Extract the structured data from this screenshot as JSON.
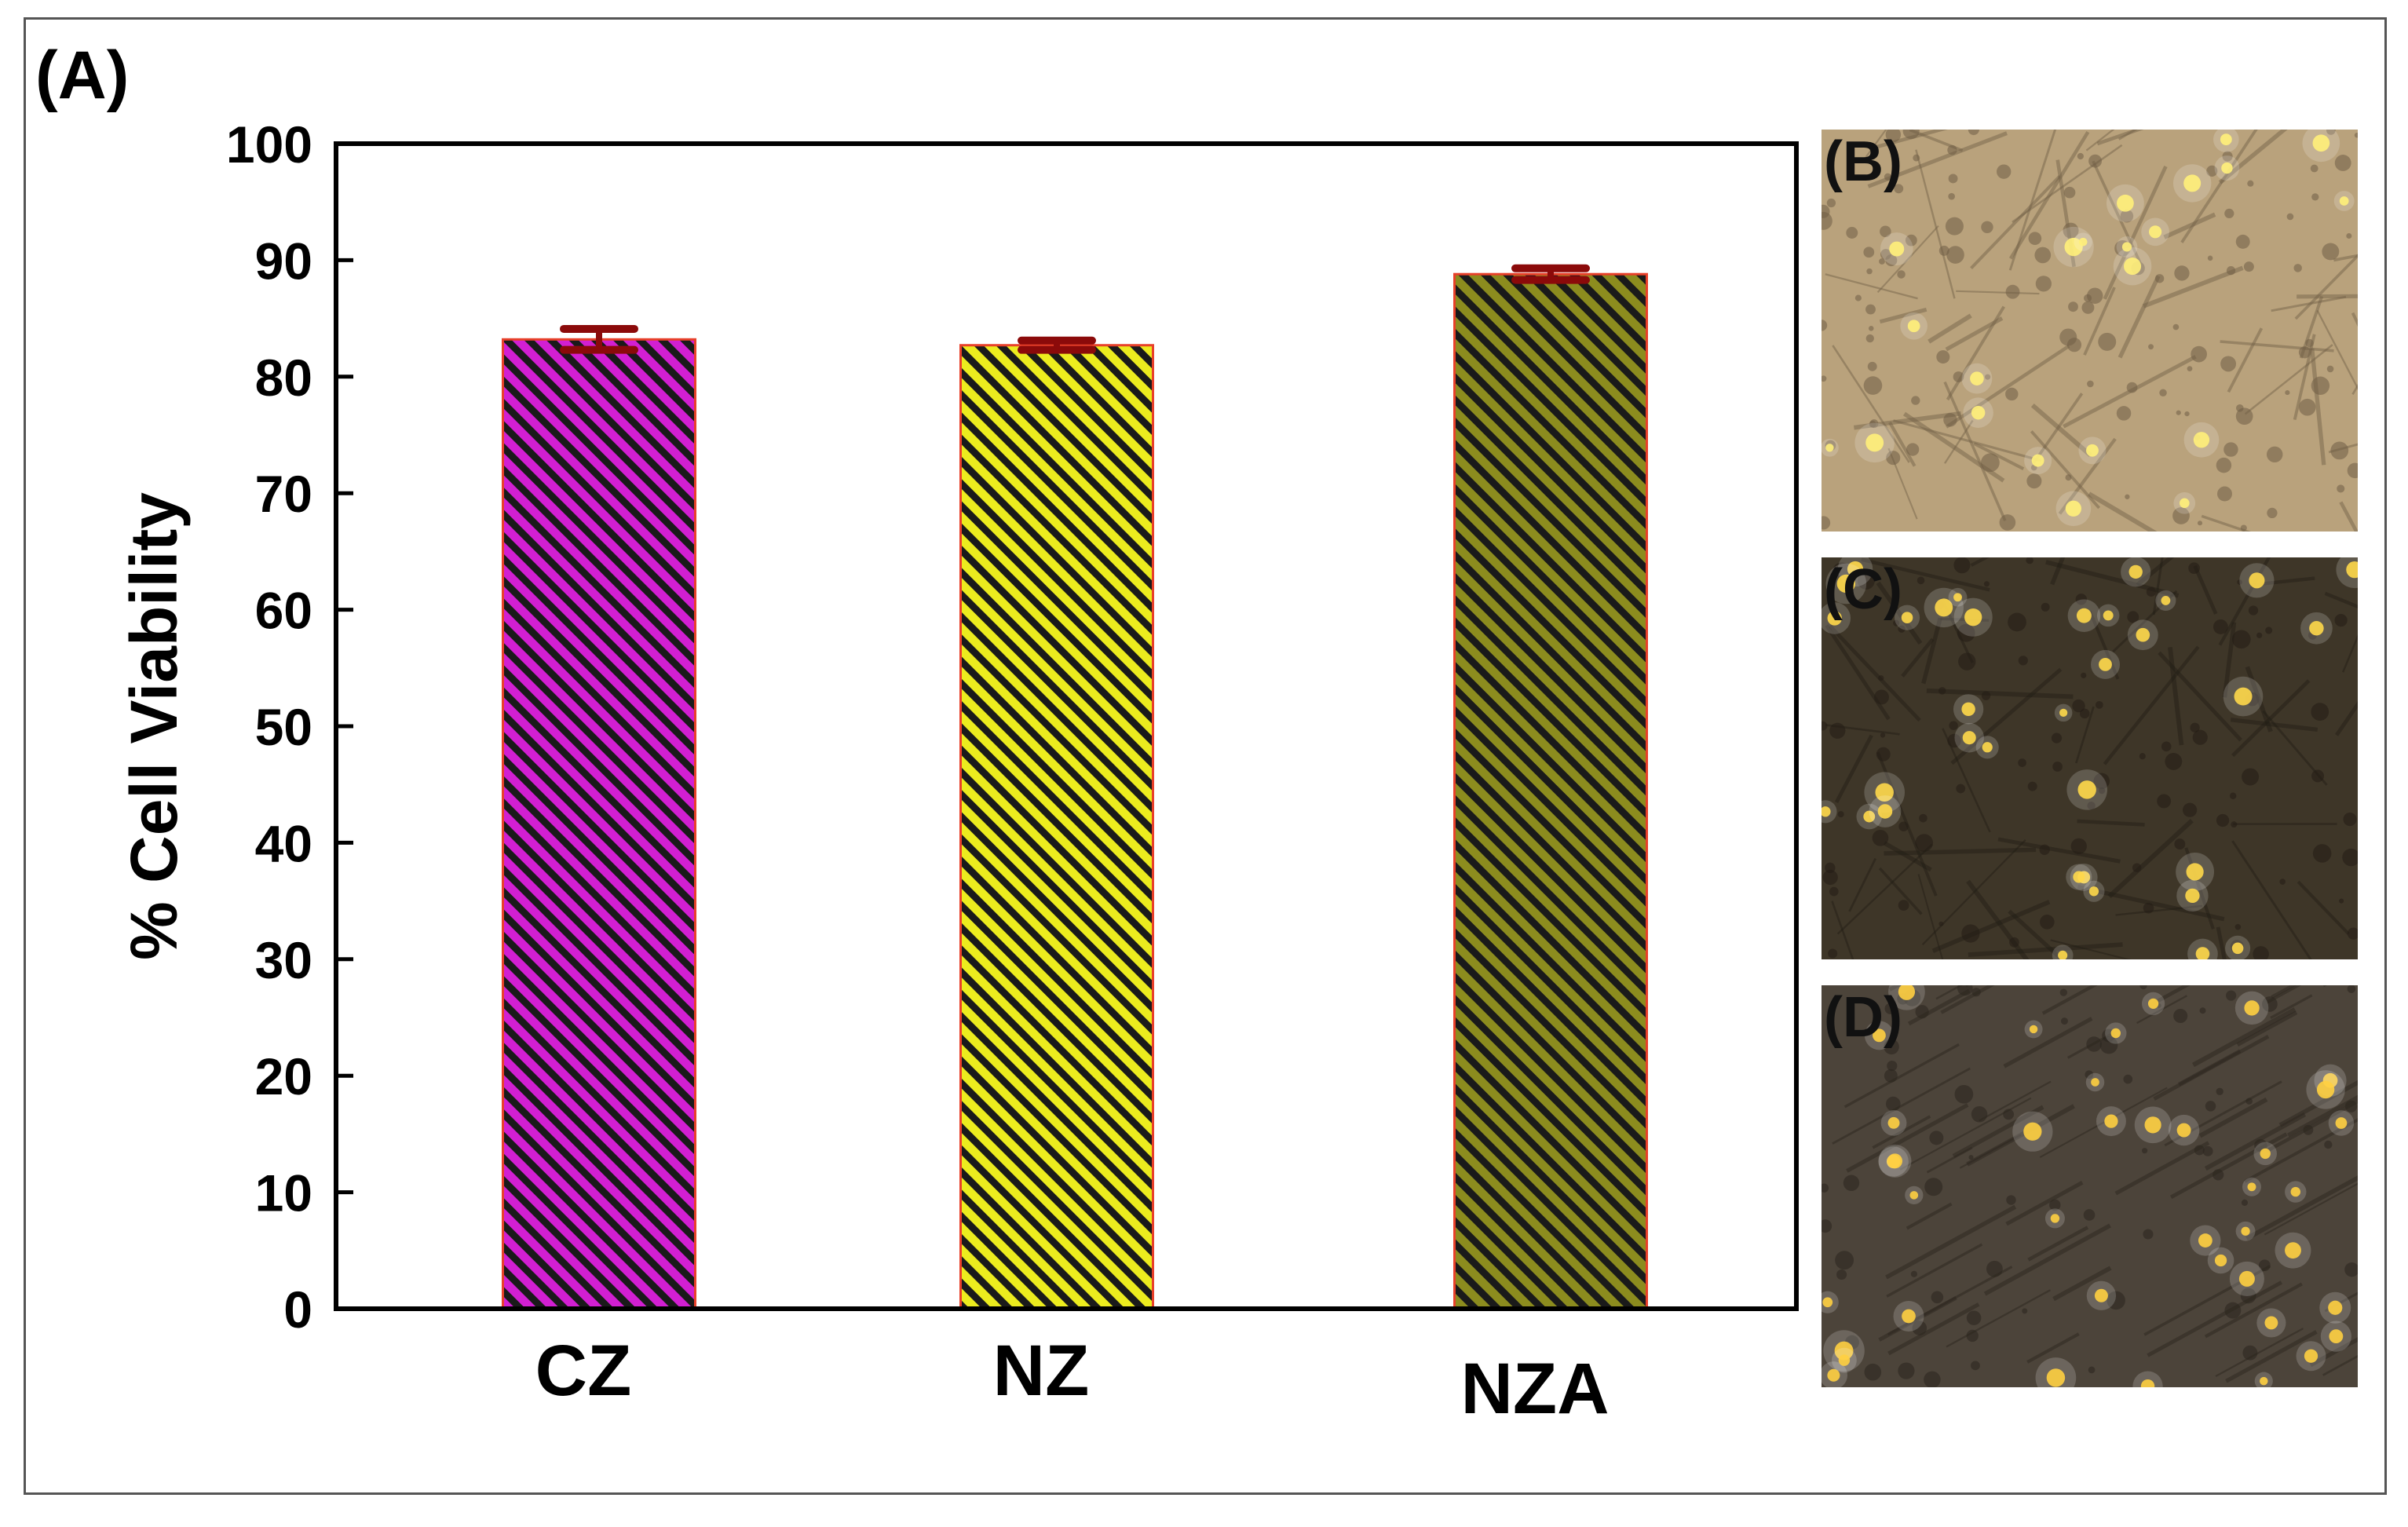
{
  "figure": {
    "panel_labels": {
      "a": "(A)",
      "b": "(B)",
      "c": "(C)",
      "d": "(D)"
    }
  },
  "chart_data": {
    "type": "bar",
    "categories": [
      "CZ",
      "NZ",
      "NZA"
    ],
    "values": [
      83.2,
      82.7,
      88.8
    ],
    "errors": [
      0.9,
      0.4,
      0.5
    ],
    "title": "",
    "xlabel": "",
    "ylabel": "% Cell Viability",
    "ylim": [
      0,
      100
    ],
    "yticks": [
      0,
      10,
      20,
      30,
      40,
      50,
      60,
      70,
      80,
      90,
      100
    ],
    "grid": false,
    "colors": {
      "bar_fills": [
        "#d21fd2",
        "#ecec1e",
        "#8c8c1e"
      ],
      "hatch_line": "#1a1a1a",
      "bar_edge": "#e8402a",
      "error_bar": "#8b0a0a"
    }
  },
  "micrographs": {
    "b": {
      "colors": {
        "base": "#b9a27c",
        "cell": "#6f5d45",
        "glow": "#fff07a"
      }
    },
    "c": {
      "colors": {
        "base": "#3e3628",
        "cell": "#221c14",
        "glow": "#ffd84a"
      }
    },
    "d": {
      "colors": {
        "base": "#4c443a",
        "cell": "#2a241d",
        "glow": "#ffcf40"
      }
    }
  }
}
